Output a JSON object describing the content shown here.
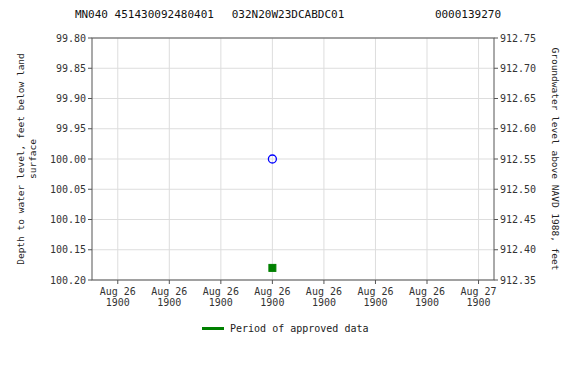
{
  "chart_data": {
    "type": "scatter",
    "title": [
      "MN040 451430092480401",
      "032N20W23DCABDC01",
      "0000139270"
    ],
    "y_label": "Depth to water level, feet below land\nsurface",
    "y2_label": "Groundwater level above NAVD 1988, feet",
    "categories": [
      "Aug 26\n1900",
      "Aug 26\n1900",
      "Aug 26\n1900",
      "Aug 26\n1900",
      "Aug 26\n1900",
      "Aug 26\n1900",
      "Aug 26\n1900",
      "Aug 27\n1900"
    ],
    "series": [
      {
        "color": "#0000ff",
        "marker": "circle",
        "values": [
          null,
          null,
          null,
          100.0,
          null,
          null,
          null,
          null
        ]
      },
      {
        "name": "Period of approved data",
        "color": "#008000",
        "marker": "square",
        "values": [
          null,
          null,
          null,
          100.18,
          null,
          null,
          null,
          null
        ]
      }
    ],
    "ylim": [
      100.2,
      99.8
    ],
    "yticks": [
      {
        "value": 99.8,
        "label": "99.80"
      },
      99.85,
      {
        "value": 99.9,
        "label": "99.90"
      },
      99.95,
      {
        "value": 100,
        "label": "100.00"
      },
      100.05,
      {
        "value": 100.1,
        "label": "100.10"
      },
      100.15,
      {
        "value": 100.2,
        "label": "100.20"
      }
    ],
    "y2lim": [
      912.35,
      912.75
    ],
    "y2ticks": [
      912.75,
      {
        "value": 912.7,
        "label": "912.70"
      },
      912.65,
      {
        "value": 912.6,
        "label": "912.60"
      },
      912.55,
      {
        "value": 912.5,
        "label": "912.50"
      },
      912.45,
      {
        "value": 912.4,
        "label": "912.40"
      },
      912.35
    ],
    "grid": true,
    "legend": "bottom"
  }
}
